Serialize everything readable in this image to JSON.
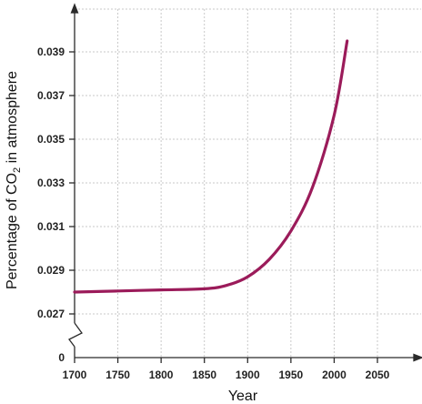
{
  "chart_data": {
    "type": "line",
    "title": "",
    "xlabel": "Year",
    "ylabel_prefix": "Percentage of CO",
    "ylabel_subscript": "2",
    "ylabel_suffix": " in atmosphere",
    "x_ticks": [
      "1700",
      "1750",
      "1800",
      "1850",
      "1900",
      "1950",
      "2000",
      "2050"
    ],
    "y_ticks": [
      "0.027",
      "0.029",
      "0.031",
      "0.033",
      "0.035",
      "0.037",
      "0.039"
    ],
    "y_zero_label": "0",
    "xlim": [
      1700,
      2050
    ],
    "ylim": [
      0.027,
      0.0399
    ],
    "y_axis_break": true,
    "grid": true,
    "series_color": "#9b1b5a",
    "series": [
      {
        "x": [
          1700,
          1750,
          1800,
          1850,
          1875,
          1900,
          1925,
          1950,
          1975,
          2000,
          2015
        ],
        "y": [
          0.028,
          0.02805,
          0.0281,
          0.02815,
          0.0283,
          0.0287,
          0.0295,
          0.0308,
          0.0328,
          0.0361,
          0.0395
        ]
      }
    ]
  }
}
